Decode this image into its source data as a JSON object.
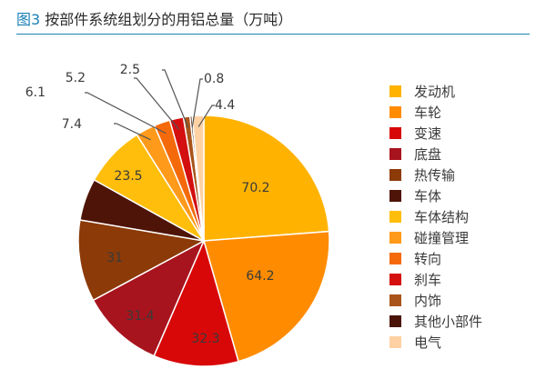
{
  "header": {
    "figure_no": "图3",
    "title_text": "按部件系统组划分的用铝总量（万吨）"
  },
  "chart_data": {
    "type": "pie",
    "title": "图3 按部件系统组划分的用铝总量（万吨）",
    "unit": "万吨",
    "legend_position": "right",
    "slices": [
      {
        "label": "发动机",
        "value": 70.2,
        "color": "#FFB300"
      },
      {
        "label": "车轮",
        "value": 64.2,
        "color": "#FF8C00"
      },
      {
        "label": "变速",
        "value": 32.3,
        "color": "#D80808"
      },
      {
        "label": "底盘",
        "value": 31.4,
        "color": "#A8141E"
      },
      {
        "label": "热传输",
        "value": 31,
        "color": "#8B3A08"
      },
      {
        "label": "车体",
        "value": 16,
        "color": "#4E1407"
      },
      {
        "label": "车体结构",
        "value": 23.5,
        "color": "#FFBE0B"
      },
      {
        "label": "碰撞管理",
        "value": 7.4,
        "color": "#FF9A1A"
      },
      {
        "label": "转向",
        "value": 6.1,
        "color": "#F46A0A"
      },
      {
        "label": "刹车",
        "value": 5.2,
        "color": "#D30F0F"
      },
      {
        "label": "内饰",
        "value": 2.5,
        "color": "#A8541A"
      },
      {
        "label": "其他小部件",
        "value": 0.8,
        "color": "#4A1508"
      },
      {
        "label": "电气",
        "value": 4.4,
        "color": "#FFD1A3"
      }
    ],
    "data_labels": [
      {
        "slice": "发动机",
        "text": "70.2"
      },
      {
        "slice": "车轮",
        "text": "64.2"
      },
      {
        "slice": "变速",
        "text": "32.3"
      },
      {
        "slice": "底盘",
        "text": "31.4"
      },
      {
        "slice": "热传输",
        "text": "31"
      },
      {
        "slice": "车体结构",
        "text": "23.5"
      },
      {
        "slice": "碰撞管理",
        "text": "7.4"
      },
      {
        "slice": "转向",
        "text": "6.1"
      },
      {
        "slice": "刹车",
        "text": "5.2"
      },
      {
        "slice": "内饰",
        "text": "2.5"
      },
      {
        "slice": "其他小部件",
        "text": "0.8"
      },
      {
        "slice": "电气",
        "text": "4.4"
      }
    ]
  }
}
